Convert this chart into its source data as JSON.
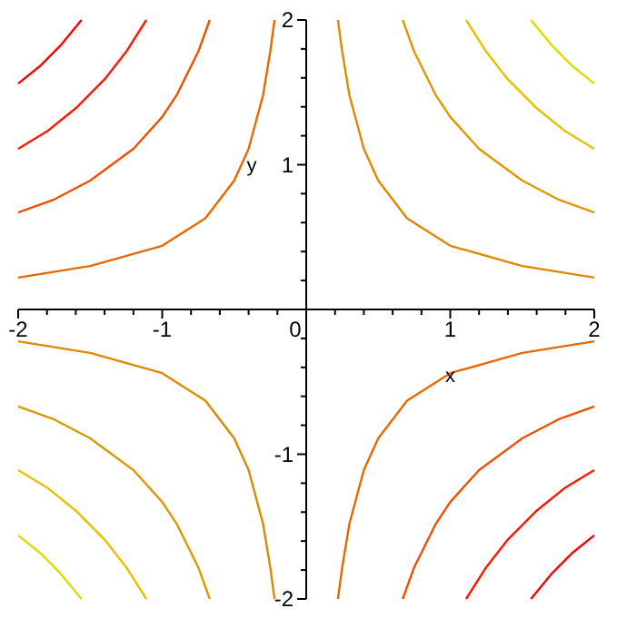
{
  "chart_data": {
    "type": "line",
    "xlabel": "x",
    "ylabel": "y",
    "xlim": [
      -2,
      2
    ],
    "ylim": [
      -2,
      2
    ],
    "xticks": [
      -2,
      {
        "value": -1.8,
        "label": null
      },
      {
        "value": -1.6,
        "label": null
      },
      {
        "value": -1.4,
        "label": null
      },
      {
        "value": -1.2,
        "label": null
      },
      -1,
      {
        "value": -0.8,
        "label": null
      },
      {
        "value": -0.6,
        "label": null
      },
      {
        "value": -0.4,
        "label": null
      },
      {
        "value": -0.2,
        "label": null
      },
      0,
      {
        "value": 0.2,
        "label": null
      },
      {
        "value": 0.4,
        "label": null
      },
      {
        "value": 0.6,
        "label": null
      },
      {
        "value": 0.8,
        "label": null
      },
      1,
      {
        "value": 1.2,
        "label": null
      },
      {
        "value": 1.4,
        "label": null
      },
      {
        "value": 1.6,
        "label": null
      },
      {
        "value": 1.8,
        "label": null
      },
      2
    ],
    "yticks": [
      -2,
      {
        "value": -1.8,
        "label": null
      },
      {
        "value": -1.6,
        "label": null
      },
      {
        "value": -1.4,
        "label": null
      },
      {
        "value": -1.2,
        "label": null
      },
      -1,
      {
        "value": -0.8,
        "label": null
      },
      {
        "value": -0.6,
        "label": null
      },
      {
        "value": -0.4,
        "label": null
      },
      {
        "value": -0.2,
        "label": null
      },
      {
        "value": 0.2,
        "label": null
      },
      {
        "value": 0.4,
        "label": null
      },
      {
        "value": 0.6,
        "label": null
      },
      {
        "value": 0.8,
        "label": null
      },
      1,
      {
        "value": 1.2,
        "label": null
      },
      {
        "value": 1.4,
        "label": null
      },
      {
        "value": 1.6,
        "label": null
      },
      {
        "value": 1.8,
        "label": null
      },
      2
    ],
    "marker": "none",
    "line_style": "solid",
    "series": [
      {
        "color": "#ff0000",
        "x": [
          -2,
          -1.85,
          -1.7,
          -1.56
        ],
        "values": [
          1.56,
          1.68,
          1.83,
          2
        ]
      },
      {
        "color": "#ff1800",
        "x": [
          -2,
          -1.8,
          -1.6,
          -1.4,
          -1.25,
          -1.11
        ],
        "values": [
          1.11,
          1.23,
          1.39,
          1.59,
          1.78,
          2
        ]
      },
      {
        "color": "#f05000",
        "x": [
          -2,
          -1.75,
          -1.5,
          -1.2,
          -1,
          -0.9,
          -0.75,
          -0.67
        ],
        "values": [
          0.67,
          0.76,
          0.89,
          1.11,
          1.33,
          1.48,
          1.78,
          2
        ]
      },
      {
        "color": "#e86800",
        "x": [
          -2,
          -1.5,
          -1,
          -0.7,
          -0.5,
          -0.4,
          -0.3,
          -0.25,
          -0.22
        ],
        "values": [
          0.22,
          0.3,
          0.44,
          0.63,
          0.89,
          1.11,
          1.48,
          1.78,
          2
        ]
      },
      {
        "color": "#ff0000",
        "x": [
          1.56,
          1.7,
          1.85,
          2
        ],
        "values": [
          -2,
          -1.83,
          -1.68,
          -1.56
        ]
      },
      {
        "color": "#ff1800",
        "x": [
          1.11,
          1.25,
          1.4,
          1.6,
          1.8,
          2
        ],
        "values": [
          -2,
          -1.78,
          -1.59,
          -1.39,
          -1.23,
          -1.11
        ]
      },
      {
        "color": "#f05000",
        "x": [
          0.67,
          0.75,
          0.9,
          1,
          1.2,
          1.5,
          1.75,
          2
        ],
        "values": [
          -2,
          -1.78,
          -1.48,
          -1.33,
          -1.11,
          -0.89,
          -0.76,
          -0.67
        ]
      },
      {
        "color": "#e86800",
        "x": [
          0.22,
          0.25,
          0.3,
          0.4,
          0.5,
          0.7,
          1,
          1.5,
          2
        ],
        "values": [
          -2,
          -1.78,
          -1.48,
          -1.11,
          -0.89,
          -0.63,
          -0.44,
          -0.3,
          -0.22
        ]
      },
      {
        "color": "#e08800",
        "x": [
          0.22,
          0.25,
          0.3,
          0.4,
          0.5,
          0.7,
          1,
          1.5,
          2
        ],
        "values": [
          2,
          1.78,
          1.48,
          1.11,
          0.89,
          0.63,
          0.44,
          0.3,
          0.22
        ]
      },
      {
        "color": "#e09800",
        "x": [
          0.67,
          0.75,
          0.9,
          1,
          1.2,
          1.5,
          1.75,
          2
        ],
        "values": [
          2,
          1.78,
          1.48,
          1.33,
          1.11,
          0.89,
          0.76,
          0.67
        ]
      },
      {
        "color": "#e8c000",
        "x": [
          1.11,
          1.25,
          1.4,
          1.6,
          1.8,
          2
        ],
        "values": [
          2,
          1.78,
          1.59,
          1.39,
          1.23,
          1.11
        ]
      },
      {
        "color": "#e0dc00",
        "x": [
          1.56,
          1.7,
          1.85,
          2
        ],
        "values": [
          2,
          1.83,
          1.68,
          1.56
        ]
      },
      {
        "color": "#e08800",
        "x": [
          -2,
          -1.5,
          -1,
          -0.7,
          -0.5,
          -0.4,
          -0.3,
          -0.25,
          -0.22
        ],
        "values": [
          -0.22,
          -0.3,
          -0.44,
          -0.63,
          -0.89,
          -1.11,
          -1.48,
          -1.78,
          -2
        ]
      },
      {
        "color": "#e09800",
        "x": [
          -2,
          -1.75,
          -1.5,
          -1.2,
          -1,
          -0.9,
          -0.75,
          -0.67
        ],
        "values": [
          -0.67,
          -0.76,
          -0.89,
          -1.11,
          -1.33,
          -1.48,
          -1.78,
          -2
        ]
      },
      {
        "color": "#e8c000",
        "x": [
          -2,
          -1.8,
          -1.6,
          -1.4,
          -1.25,
          -1.11
        ],
        "values": [
          -1.11,
          -1.23,
          -1.39,
          -1.59,
          -1.78,
          -2
        ]
      },
      {
        "color": "#e0dc00",
        "x": [
          -2,
          -1.85,
          -1.7,
          -1.56
        ],
        "values": [
          -1.56,
          -1.68,
          -1.83,
          -2
        ]
      }
    ]
  }
}
